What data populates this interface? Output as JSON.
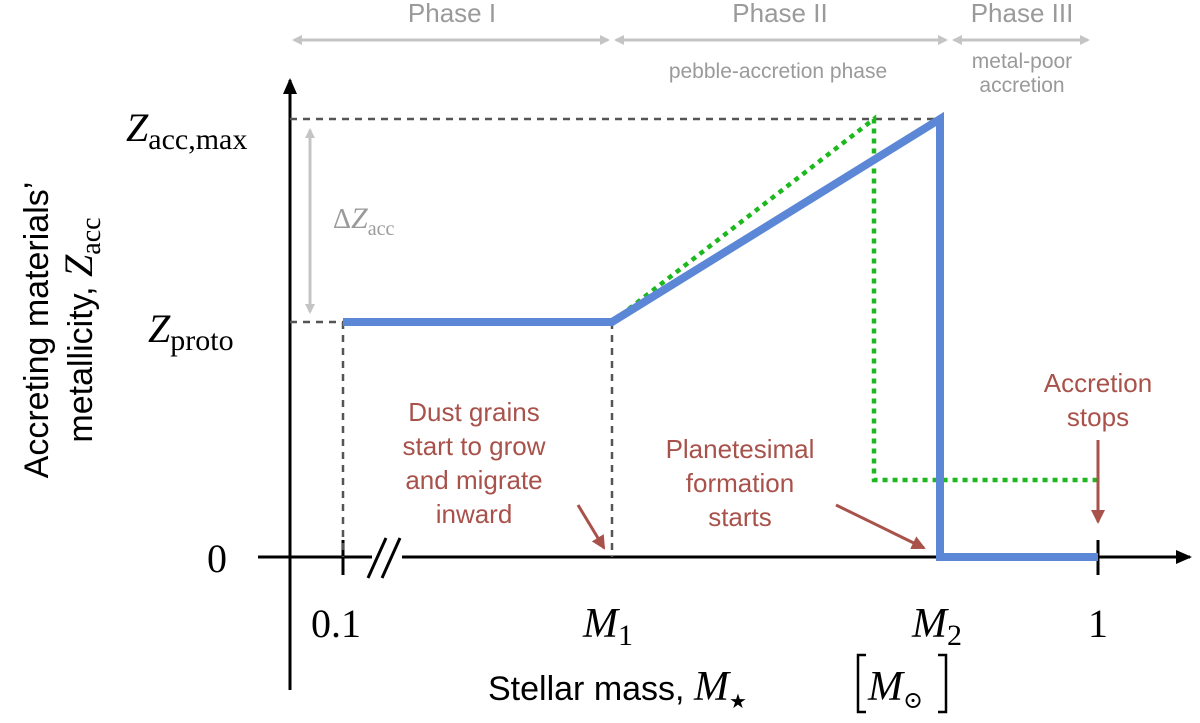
{
  "phases": [
    {
      "label": "Phase I",
      "sublabel_lines": []
    },
    {
      "label": "Phase II",
      "sublabel_lines": [
        "pebble-accretion phase"
      ]
    },
    {
      "label": "Phase III",
      "sublabel_lines": [
        "metal-poor",
        "accretion"
      ]
    }
  ],
  "y_axis": {
    "label_line1": "Accreting materials’",
    "label_line2_prefix": "metallicity, ",
    "label_line2_var": "Z",
    "label_line2_sub": "acc",
    "ticks": {
      "zacc_max": {
        "var": "Z",
        "sub": "acc,max"
      },
      "zproto": {
        "var": "Z",
        "sub": "proto"
      },
      "zero": "0"
    },
    "delta": {
      "sym": "Δ",
      "var": "Z",
      "sub": "acc"
    }
  },
  "x_axis": {
    "label_text": "Stellar mass, ",
    "label_var": "M",
    "label_star": "★",
    "label_unit_M": "M",
    "label_unit_sun": "⊙",
    "ticks": {
      "t01": "0.1",
      "m1": {
        "var": "M",
        "sub": "1"
      },
      "m2": {
        "var": "M",
        "sub": "2"
      },
      "t1": "1"
    }
  },
  "annotations": {
    "dust": [
      "Dust grains",
      "start to grow",
      "and migrate",
      "inward"
    ],
    "planetesimal": [
      "Planetesimal",
      "formation",
      "starts"
    ],
    "accretion": [
      "Accretion",
      "stops"
    ]
  },
  "colors": {
    "blue": "#5b87d6",
    "green": "#1db81d",
    "gray": "#c4c4c4",
    "gray_text": "#9a9a9a",
    "red": "#a8524b",
    "dash": "#555555",
    "axis": "#000000"
  }
}
